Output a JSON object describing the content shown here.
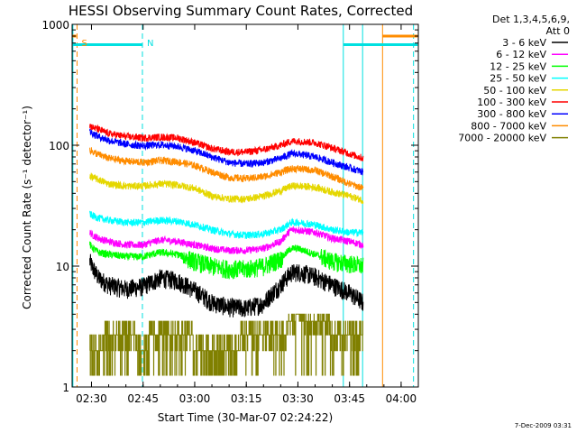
{
  "chart_data": {
    "type": "line",
    "title": "HESSI Observing Summary Count Rates, Corrected",
    "xlabel": "Start Time (30-Mar-07 02:24:22)",
    "ylabel": "Corrected Count Rate (s⁻¹ detector⁻¹)",
    "ylim": [
      1,
      1000
    ],
    "y_scale": "log",
    "xlim_minutes": [
      144.37,
      245
    ],
    "x_ticks": [
      {
        "label": "02:30",
        "m": 150
      },
      {
        "label": "02:45",
        "m": 165
      },
      {
        "label": "03:00",
        "m": 180
      },
      {
        "label": "03:15",
        "m": 195
      },
      {
        "label": "03:30",
        "m": 210
      },
      {
        "label": "03:45",
        "m": 225
      },
      {
        "label": "04:00",
        "m": 240
      }
    ],
    "y_ticks": [
      {
        "label": "1",
        "v": 1
      },
      {
        "label": "10",
        "v": 10
      },
      {
        "label": "100",
        "v": 100
      },
      {
        "label": "1000",
        "v": 1000
      }
    ],
    "legend_header": [
      "Det 1,3,4,5,6,9,",
      "Att 0"
    ],
    "legend_placement": "right",
    "footer_date": "7-Dec-2009 03:31",
    "markers": [
      {
        "label": "S",
        "color": "#ff8c00",
        "x": 145.8
      },
      {
        "label": "N",
        "color": "#00e0e0",
        "x": 164.8
      }
    ],
    "vlines": [
      {
        "color": "#00e0e0",
        "style": "solid",
        "x": 144.6
      },
      {
        "color": "#ff8c00",
        "style": "dashed",
        "x": 145.8
      },
      {
        "color": "#00e0e0",
        "style": "dashed",
        "x": 164.8
      },
      {
        "color": "#00e0e0",
        "style": "solid",
        "x": 223.2
      },
      {
        "color": "#00e0e0",
        "style": "solid",
        "x": 228.8
      },
      {
        "color": "#ff8c00",
        "style": "solid",
        "x": 234.6
      },
      {
        "color": "#00e0e0",
        "style": "dashed",
        "x": 243.6
      }
    ],
    "top_bars": [
      {
        "color": "#00e0e0",
        "x0": 144.4,
        "x1": 164.8,
        "v": 680
      },
      {
        "color": "#ff8c00",
        "x0": 144.4,
        "x1": 145.6,
        "v": 800
      },
      {
        "color": "#00e0e0",
        "x0": 223.2,
        "x1": 244.8,
        "v": 680
      },
      {
        "color": "#ff8c00",
        "x0": 234.6,
        "x1": 244.8,
        "v": 800
      }
    ],
    "x": [
      149.5,
      150.5,
      152,
      155,
      160,
      165,
      170,
      175,
      180,
      185,
      190,
      195,
      200,
      205,
      208,
      210,
      215,
      220,
      225,
      229
    ],
    "series": [
      {
        "name": "3 - 6 keV",
        "color": "#000000",
        "values": [
          11,
          9.5,
          8,
          7,
          6.5,
          6.8,
          8,
          7.6,
          6.3,
          5,
          4.6,
          4.5,
          4.9,
          7,
          8.8,
          9,
          8.2,
          7,
          6,
          5
        ]
      },
      {
        "name": "6 - 12 keV",
        "color": "#ff00ff",
        "values": [
          19,
          18,
          17,
          16,
          15,
          15,
          16.5,
          16,
          15,
          14,
          13.5,
          13.5,
          14,
          16,
          20,
          20,
          19,
          17,
          16,
          15
        ]
      },
      {
        "name": "12 - 25 keV",
        "color": "#00ff00",
        "values": [
          15,
          14,
          13,
          12.5,
          12,
          12,
          13,
          12.5,
          11,
          10,
          9.5,
          9.5,
          10,
          11.5,
          14,
          14,
          12.5,
          11,
          10.5,
          10
        ]
      },
      {
        "name": "25 - 50 keV",
        "color": "#00ffff",
        "values": [
          27,
          26,
          25,
          24,
          23,
          23,
          24,
          23.5,
          22,
          20,
          18.5,
          18,
          18.5,
          20,
          23,
          23,
          22,
          20,
          19,
          19
        ]
      },
      {
        "name": "50 - 100 keV",
        "color": "#e5d700",
        "values": [
          56,
          54,
          52,
          48,
          46,
          46,
          48,
          47,
          44,
          38,
          36,
          36,
          38,
          42,
          46,
          46,
          45,
          41,
          38,
          35
        ]
      },
      {
        "name": "100 - 300 keV",
        "color": "#ff0000",
        "values": [
          145,
          140,
          135,
          125,
          118,
          115,
          117,
          115,
          105,
          94,
          88,
          88,
          92,
          100,
          108,
          108,
          105,
          95,
          85,
          78
        ]
      },
      {
        "name": "300 - 800 keV",
        "color": "#0000ff",
        "values": [
          130,
          125,
          118,
          110,
          102,
          99,
          101,
          98,
          90,
          80,
          72,
          70,
          72,
          78,
          85,
          85,
          80,
          72,
          65,
          60
        ]
      },
      {
        "name": "800 - 7000 keV",
        "color": "#ff8c00",
        "values": [
          92,
          88,
          84,
          78,
          74,
          72,
          75,
          73,
          68,
          60,
          54,
          53,
          55,
          60,
          64,
          64,
          62,
          55,
          48,
          44
        ]
      },
      {
        "name": "7000 - 20000 keV",
        "color": "#808000",
        "values": [
          2.1,
          2.0,
          2.2,
          2.5,
          2.8,
          2.0,
          3.0,
          3.0,
          2.2,
          2.0,
          2.0,
          2.5,
          3.0,
          2.5,
          3.6,
          3.8,
          3.6,
          3.0,
          3.0,
          2.8
        ]
      }
    ]
  }
}
